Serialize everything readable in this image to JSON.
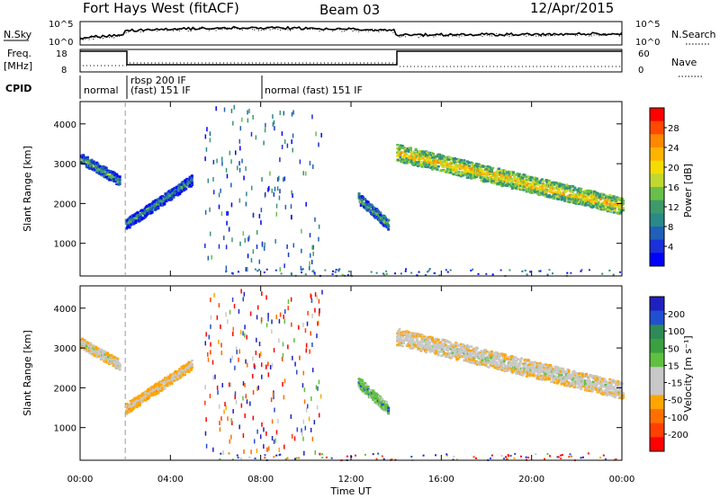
{
  "header": {
    "radar": "Fort Hays West (fitACF)",
    "beam": "Beam 03",
    "date": "12/Apr/2015"
  },
  "aux_panels": {
    "nsky_label": "N.Sky",
    "nsky_ticks": [
      "10^5",
      "10^0"
    ],
    "nsearch_label": "N.Search",
    "nsearch_ticks": [
      "10^5",
      "10^0"
    ],
    "freq_label": "Freq.",
    "freq_unit": "[MHz]",
    "freq_ticks": [
      "18",
      "8"
    ],
    "nave_label": "Nave",
    "nave_ticks": [
      "60",
      "0"
    ],
    "cpid_label": "CPID",
    "cpid_entries": [
      "normal",
      "rbsp 200 IF",
      "(fast) 151 IF",
      "normal (fast) 151 IF"
    ]
  },
  "x_axis": {
    "label": "Time UT",
    "ticks": [
      "00:00",
      "04:00",
      "08:00",
      "12:00",
      "16:00",
      "20:00",
      "00:00"
    ]
  },
  "colorbars": {
    "power": {
      "label": "Power [dB]",
      "ticks": [
        "28",
        "24",
        "20",
        "16",
        "12",
        "8",
        "4"
      ],
      "colors": [
        "#ff0000",
        "#ff4a00",
        "#ff8800",
        "#ffb400",
        "#f5dc00",
        "#c0d830",
        "#68c048",
        "#3e9a6a",
        "#2a8a88",
        "#2060b8",
        "#1a30d8",
        "#0000ff"
      ]
    },
    "velocity": {
      "label": "Velocity [m s⁻¹]",
      "ticks": [
        "200",
        "100",
        "50",
        "15",
        "-15",
        "-50",
        "-100",
        "-200"
      ],
      "colors": [
        "#2020c0",
        "#2050d0",
        "#2e8b57",
        "#3aa040",
        "#60c040",
        "#c8c8c8",
        "#c8c8c8",
        "#ffa500",
        "#ff7000",
        "#ff4000",
        "#ff0000"
      ]
    }
  },
  "chart_data": [
    {
      "type": "heatmap",
      "title": "Power",
      "xlabel": "Time UT",
      "ylabel": "Slant Range [km]",
      "xlim": [
        0,
        24
      ],
      "ylim": [
        180,
        4560
      ],
      "yticks": [
        1000,
        2000,
        3000,
        4000
      ],
      "colorbar_label": "Power [dB]",
      "colorbar_range": [
        0,
        32
      ],
      "echo_bands": [
        {
          "t_start": 0.0,
          "t_end": 1.7,
          "range_start": 3150,
          "range_end": 2600,
          "value": 8
        },
        {
          "t_start": 2.0,
          "t_end": 4.9,
          "range_start": 1500,
          "range_end": 2600,
          "value": 6
        },
        {
          "t_start": 12.3,
          "t_end": 13.6,
          "range_start": 2150,
          "range_end": 1500,
          "value": 8
        },
        {
          "t_start": 14.0,
          "t_end": 24.0,
          "range_start": 3300,
          "range_end": 1950,
          "value": 16
        }
      ]
    },
    {
      "type": "heatmap",
      "title": "Velocity",
      "xlabel": "Time UT",
      "ylabel": "Slant Range [km]",
      "xlim": [
        0,
        24
      ],
      "ylim": [
        180,
        4560
      ],
      "yticks": [
        1000,
        2000,
        3000,
        4000
      ],
      "colorbar_label": "Velocity [m s⁻¹]",
      "colorbar_range": [
        -250,
        250
      ],
      "echo_bands": [
        {
          "t_start": 0.0,
          "t_end": 1.7,
          "range_start": 3150,
          "range_end": 2600,
          "value": 0
        },
        {
          "t_start": 2.0,
          "t_end": 4.9,
          "range_start": 1500,
          "range_end": 2600,
          "value": -20
        },
        {
          "t_start": 12.3,
          "t_end": 13.6,
          "range_start": 2150,
          "range_end": 1500,
          "value": 50
        },
        {
          "t_start": 14.0,
          "t_end": 24.0,
          "range_start": 3300,
          "range_end": 1950,
          "value": 0
        }
      ]
    }
  ]
}
